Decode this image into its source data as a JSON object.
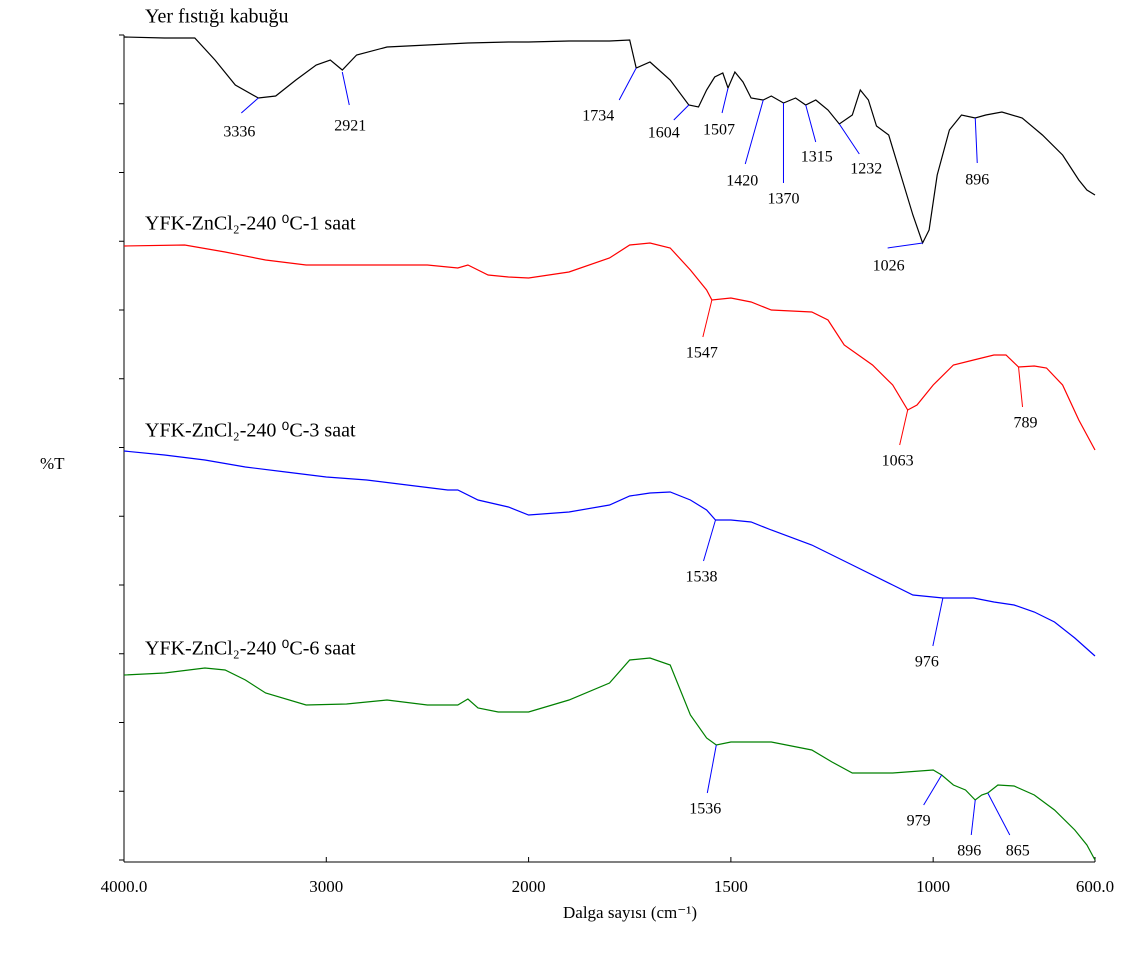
{
  "chart_data": {
    "type": "line",
    "xlabel": "Dalga sayısı (cm⁻¹)",
    "ylabel": "%T",
    "xlim": [
      4000,
      600
    ],
    "xticks": [
      {
        "value": 4000,
        "label": "4000.0"
      },
      3000,
      2000,
      1500,
      1000,
      {
        "value": 600,
        "label": "600.0"
      }
    ],
    "xbreak": 2000,
    "xbreak_factor": 2,
    "ylim": [
      0,
      825
    ],
    "yticks": [
      0,
      68.75,
      137.5,
      206.25,
      275,
      343.75,
      412.5,
      481.25,
      550,
      618.75,
      687.5,
      756.25,
      825
    ],
    "series": [
      {
        "name": "Yer fıstığı kabuğu",
        "color": "#000000",
        "x": [
          4000,
          3800,
          3650,
          3550,
          3450,
          3336,
          3250,
          3150,
          3050,
          2980,
          2921,
          2850,
          2700,
          2500,
          2300,
          2100,
          2000,
          1900,
          1800,
          1750,
          1734,
          1700,
          1650,
          1604,
          1580,
          1560,
          1540,
          1520,
          1507,
          1490,
          1470,
          1450,
          1420,
          1400,
          1370,
          1340,
          1315,
          1290,
          1260,
          1232,
          1200,
          1180,
          1160,
          1140,
          1110,
          1080,
          1050,
          1026,
          1010,
          990,
          960,
          930,
          896,
          870,
          830,
          780,
          730,
          680,
          640,
          620,
          600
        ],
        "values": [
          823,
          822,
          822,
          800,
          775,
          762,
          764,
          780,
          795,
          800,
          790,
          805,
          813,
          815,
          817,
          818,
          818,
          819,
          819,
          820,
          792,
          798,
          780,
          755,
          753,
          770,
          783,
          787,
          772,
          788,
          778,
          762,
          760,
          764,
          757,
          762,
          755,
          760,
          750,
          736,
          745,
          770,
          760,
          734,
          725,
          685,
          645,
          617,
          630,
          685,
          730,
          745,
          742,
          745,
          748,
          742,
          725,
          705,
          680,
          670,
          665
        ]
      },
      {
        "name": "YFK-ZnCl₂-240 ⁰C-1 saat",
        "color": "#ff0000",
        "x": [
          4000,
          3700,
          3500,
          3300,
          3100,
          2900,
          2700,
          2500,
          2350,
          2300,
          2200,
          2100,
          2000,
          1900,
          1800,
          1750,
          1700,
          1650,
          1600,
          1560,
          1547,
          1500,
          1450,
          1400,
          1300,
          1260,
          1220,
          1150,
          1100,
          1063,
          1040,
          1000,
          950,
          900,
          850,
          820,
          789,
          750,
          720,
          680,
          640,
          600
        ],
        "values": [
          614,
          615,
          608,
          600,
          595,
          595,
          595,
          595,
          592,
          595,
          585,
          583,
          582,
          588,
          602,
          615,
          617,
          612,
          590,
          570,
          560,
          562,
          558,
          550,
          548,
          540,
          515,
          495,
          475,
          450,
          455,
          475,
          495,
          500,
          505,
          505,
          493,
          494,
          492,
          475,
          440,
          410
        ]
      },
      {
        "name": "YFK-ZnCl₂-240 ⁰C-3 saat",
        "color": "#0000ff",
        "x": [
          4000,
          3800,
          3600,
          3400,
          3200,
          3000,
          2800,
          2600,
          2400,
          2350,
          2250,
          2100,
          2000,
          1900,
          1800,
          1750,
          1700,
          1650,
          1600,
          1560,
          1538,
          1500,
          1450,
          1400,
          1300,
          1200,
          1100,
          1050,
          976,
          900,
          850,
          800,
          750,
          700,
          650,
          600
        ],
        "values": [
          409,
          405,
          400,
          393,
          388,
          383,
          380,
          375,
          370,
          370,
          360,
          353,
          345,
          348,
          355,
          364,
          367,
          368,
          360,
          350,
          340,
          340,
          338,
          330,
          315,
          295,
          275,
          265,
          262,
          262,
          258,
          255,
          248,
          238,
          222,
          204
        ]
      },
      {
        "name": "YFK-ZnCl₂-240 ⁰C-6 saat",
        "color": "#008000",
        "x": [
          4000,
          3800,
          3600,
          3500,
          3400,
          3300,
          3100,
          2900,
          2700,
          2500,
          2350,
          2300,
          2250,
          2150,
          2000,
          1900,
          1800,
          1750,
          1700,
          1650,
          1600,
          1560,
          1536,
          1500,
          1400,
          1300,
          1250,
          1200,
          1100,
          1000,
          979,
          950,
          920,
          896,
          880,
          865,
          840,
          800,
          750,
          700,
          650,
          620,
          600
        ],
        "values": [
          185,
          187,
          192,
          190,
          180,
          167,
          155,
          156,
          160,
          155,
          155,
          161,
          152,
          148,
          148,
          160,
          177,
          200,
          202,
          195,
          145,
          122,
          115,
          118,
          118,
          110,
          98,
          87,
          87,
          90,
          85,
          75,
          70,
          60,
          65,
          67,
          75,
          74,
          65,
          50,
          30,
          15,
          0
        ]
      }
    ],
    "annotations": [
      {
        "x": 3336,
        "y": 762,
        "color": "#0000ff"
      },
      {
        "x": 2921,
        "y": 788,
        "color": "#0000ff"
      },
      {
        "x": 1734,
        "y": 792,
        "color": "#0000ff"
      },
      {
        "x": 1604,
        "y": 755,
        "color": "#0000ff"
      },
      {
        "x": 1507,
        "y": 772,
        "color": "#0000ff"
      },
      {
        "x": 1420,
        "y": 760,
        "color": "#0000ff"
      },
      {
        "x": 1370,
        "y": 757,
        "color": "#0000ff"
      },
      {
        "x": 1315,
        "y": 755,
        "color": "#0000ff"
      },
      {
        "x": 1232,
        "y": 736,
        "color": "#0000ff"
      },
      {
        "x": 896,
        "y": 742,
        "color": "#0000ff"
      },
      {
        "x": 1026,
        "y": 617,
        "color": "#0000ff"
      },
      {
        "x": 1547,
        "y": 560,
        "color": "#ff0000"
      },
      {
        "x": 1063,
        "y": 450,
        "color": "#ff0000"
      },
      {
        "x": 789,
        "y": 493,
        "color": "#ff0000"
      },
      {
        "x": 1538,
        "y": 340,
        "color": "#0000ff"
      },
      {
        "x": 976,
        "y": 262,
        "color": "#0000ff"
      },
      {
        "x": 1536,
        "y": 115,
        "color": "#0000ff"
      },
      {
        "x": 979,
        "y": 85,
        "color": "#0000ff"
      },
      {
        "x": 896,
        "y": 60,
        "color": "#0000ff"
      },
      {
        "x": 865,
        "y": 67,
        "color": "#0000ff"
      }
    ]
  }
}
